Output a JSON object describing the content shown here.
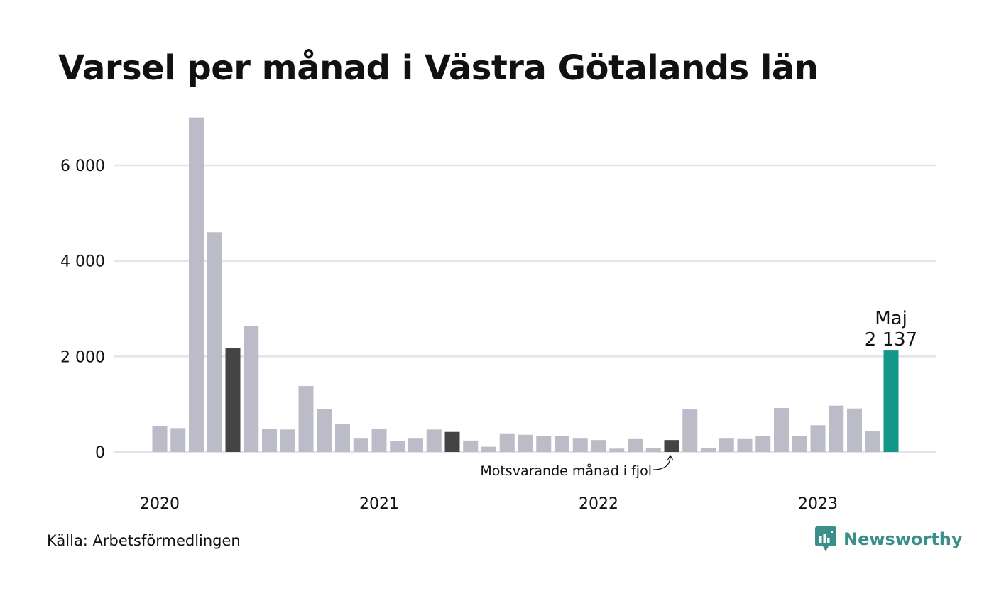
{
  "title": "Varsel per månad i Västra Götalands län",
  "source": "Källa: Arbetsförmedlingen",
  "brand": {
    "name": "Newsworthy",
    "icon": "newsworthy-logo-icon",
    "color": "#3a8f8a"
  },
  "colors": {
    "bar": "#bcbbc8",
    "same_month": "#444444",
    "highlight": "#14968a",
    "grid": "#e3e3e8"
  },
  "chart_data": {
    "type": "bar",
    "ylim": [
      0,
      7000
    ],
    "yticks": [
      0,
      2000,
      4000,
      6000
    ],
    "ytick_labels": [
      "0",
      "2 000",
      "4 000",
      "6 000"
    ],
    "x_year_labels": [
      {
        "label": "2020",
        "index": 0
      },
      {
        "label": "2021",
        "index": 12
      },
      {
        "label": "2022",
        "index": 24
      },
      {
        "label": "2023",
        "index": 36
      }
    ],
    "grid": true,
    "months": [
      "2020-01",
      "2020-02",
      "2020-03",
      "2020-04",
      "2020-05",
      "2020-06",
      "2020-07",
      "2020-08",
      "2020-09",
      "2020-10",
      "2020-11",
      "2020-12",
      "2021-01",
      "2021-02",
      "2021-03",
      "2021-04",
      "2021-05",
      "2021-06",
      "2021-07",
      "2021-08",
      "2021-09",
      "2021-10",
      "2021-11",
      "2021-12",
      "2022-01",
      "2022-02",
      "2022-03",
      "2022-04",
      "2022-05",
      "2022-06",
      "2022-07",
      "2022-08",
      "2022-09",
      "2022-10",
      "2022-11",
      "2022-12",
      "2023-01",
      "2023-02",
      "2023-03",
      "2023-04",
      "2023-05"
    ],
    "values": [
      550,
      500,
      7000,
      4600,
      2170,
      2630,
      490,
      470,
      1380,
      900,
      590,
      280,
      480,
      230,
      280,
      470,
      420,
      240,
      110,
      390,
      360,
      330,
      340,
      280,
      250,
      70,
      270,
      80,
      250,
      890,
      80,
      280,
      270,
      330,
      920,
      330,
      560,
      970,
      910,
      430,
      2137
    ],
    "same_month_indices": [
      4,
      16,
      28
    ],
    "highlight_index": 40,
    "highlight_label": {
      "month": "Maj",
      "value": "2 137"
    },
    "annotation": "Motsvarande månad i fjol"
  }
}
